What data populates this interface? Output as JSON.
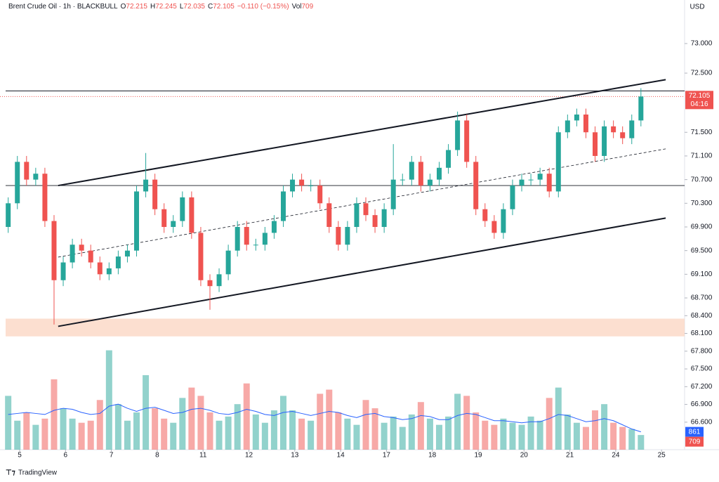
{
  "chart_data": {
    "type": "candlestick",
    "header": {
      "symbol": "Brent Crude Oil · 1h · BLACKBULL",
      "fields": [
        {
          "label": "O",
          "value": 72.215
        },
        {
          "label": "H",
          "value": 72.245
        },
        {
          "label": "L",
          "value": 72.035
        },
        {
          "label": "C",
          "value": 72.105
        }
      ],
      "change": "−0.110 (−0.15%)",
      "volume_label": "Vol",
      "volume": 709
    },
    "currency": "USD",
    "xlim": [
      -0.3,
      14.6
    ],
    "xticks": [
      {
        "value": 0,
        "label": "5"
      },
      {
        "value": 1,
        "label": "6"
      },
      {
        "value": 2,
        "label": "7"
      },
      {
        "value": 3,
        "label": "8"
      },
      {
        "value": 4,
        "label": "11"
      },
      {
        "value": 5,
        "label": "12"
      },
      {
        "value": 6,
        "label": "13"
      },
      {
        "value": 7,
        "label": "14"
      },
      {
        "value": 8,
        "label": "17"
      },
      {
        "value": 9,
        "label": "18"
      },
      {
        "value": 10,
        "label": "19"
      },
      {
        "value": 11,
        "label": "20"
      },
      {
        "value": 12,
        "label": "21"
      },
      {
        "value": 13,
        "label": "24"
      },
      {
        "value": 14,
        "label": "25"
      }
    ],
    "ylim": [
      66.135,
      73.736
    ],
    "yticks": [
      {
        "value": 73,
        "label": "73.000"
      },
      {
        "value": 72.5,
        "label": "72.500"
      },
      {
        "value": 71.5,
        "label": "71.500"
      },
      {
        "value": 71.1,
        "label": "71.100"
      },
      {
        "value": 70.7,
        "label": "70.700"
      },
      {
        "value": 70.3,
        "label": "70.300"
      },
      {
        "value": 69.9,
        "label": "69.900"
      },
      {
        "value": 69.5,
        "label": "69.500"
      },
      {
        "value": 69.1,
        "label": "69.100"
      },
      {
        "value": 68.7,
        "label": "68.700"
      },
      {
        "value": 68.4,
        "label": "68.400"
      },
      {
        "value": 68.1,
        "label": "68.100"
      },
      {
        "value": 67.8,
        "label": "67.800"
      },
      {
        "value": 67.5,
        "label": "67.500"
      },
      {
        "value": 67.2,
        "label": "67.200"
      },
      {
        "value": 66.9,
        "label": "66.900"
      },
      {
        "value": 66.6,
        "label": "66.600"
      }
    ],
    "grid": false,
    "up_color": "#26a69a",
    "down_color": "#ef5350",
    "ma_color": "#2962ff",
    "candles": {
      "x": [
        -0.25,
        -0.05,
        0.15,
        0.35,
        0.55,
        0.75,
        0.95,
        1.15,
        1.35,
        1.55,
        1.75,
        1.95,
        2.15,
        2.35,
        2.55,
        2.75,
        2.95,
        3.15,
        3.35,
        3.55,
        3.75,
        3.95,
        4.15,
        4.35,
        4.55,
        4.75,
        4.95,
        5.15,
        5.35,
        5.55,
        5.75,
        5.95,
        6.15,
        6.35,
        6.55,
        6.75,
        6.95,
        7.15,
        7.35,
        7.55,
        7.75,
        7.95,
        8.15,
        8.35,
        8.55,
        8.75,
        8.95,
        9.15,
        9.35,
        9.55,
        9.75,
        9.95,
        10.15,
        10.35,
        10.55,
        10.75,
        10.95,
        11.15,
        11.35,
        11.55,
        11.75,
        11.95,
        12.15,
        12.35,
        12.55,
        12.75,
        12.95,
        13.15,
        13.35,
        13.55
      ],
      "open": [
        69.9,
        70.3,
        71.0,
        70.7,
        70.8,
        70.0,
        69.0,
        69.3,
        69.6,
        69.5,
        69.3,
        69.1,
        69.2,
        69.4,
        69.5,
        70.5,
        70.7,
        70.2,
        69.9,
        70.0,
        70.4,
        69.8,
        69.0,
        68.9,
        69.1,
        69.5,
        69.9,
        69.6,
        69.6,
        69.8,
        70.0,
        70.5,
        70.7,
        70.6,
        70.6,
        70.3,
        69.9,
        69.6,
        69.9,
        70.3,
        70.1,
        69.9,
        70.2,
        70.7,
        70.7,
        71.0,
        70.6,
        70.7,
        70.9,
        71.2,
        71.7,
        71.0,
        70.2,
        70.0,
        69.8,
        70.2,
        70.6,
        70.7,
        70.7,
        70.8,
        70.5,
        71.5,
        71.7,
        71.8,
        71.5,
        71.1,
        71.6,
        71.5,
        71.4,
        71.7
      ],
      "high": [
        70.4,
        71.1,
        71.1,
        70.9,
        70.9,
        70.1,
        69.4,
        69.7,
        69.7,
        69.6,
        69.4,
        69.3,
        69.5,
        69.6,
        70.6,
        71.15,
        70.8,
        70.3,
        70.1,
        70.5,
        70.5,
        69.9,
        69.1,
        69.2,
        69.6,
        70.0,
        70.0,
        69.7,
        69.9,
        70.1,
        70.6,
        70.8,
        70.8,
        70.7,
        70.7,
        70.4,
        70.0,
        70.0,
        70.4,
        70.4,
        70.2,
        70.3,
        71.3,
        70.8,
        71.1,
        71.1,
        70.8,
        71.0,
        71.3,
        71.85,
        71.8,
        71.1,
        70.3,
        70.1,
        70.3,
        70.7,
        70.8,
        70.8,
        70.9,
        70.9,
        71.6,
        71.8,
        71.9,
        71.9,
        71.6,
        71.7,
        71.7,
        71.6,
        71.8,
        72.245
      ],
      "low": [
        69.8,
        70.2,
        70.6,
        70.6,
        69.9,
        68.25,
        68.9,
        69.2,
        69.4,
        69.2,
        69.0,
        69.0,
        69.1,
        69.3,
        69.4,
        70.4,
        70.1,
        69.8,
        69.8,
        69.9,
        69.7,
        68.9,
        68.5,
        68.8,
        69.0,
        69.4,
        69.5,
        69.5,
        69.5,
        69.7,
        69.9,
        70.4,
        70.5,
        70.5,
        70.2,
        69.8,
        69.5,
        69.5,
        69.8,
        70.0,
        69.8,
        69.8,
        70.1,
        70.6,
        70.6,
        70.5,
        70.5,
        70.6,
        70.8,
        71.1,
        70.9,
        70.1,
        69.9,
        69.7,
        69.7,
        70.1,
        70.5,
        70.6,
        70.6,
        70.4,
        70.4,
        71.4,
        71.6,
        71.4,
        71.0,
        71.0,
        71.4,
        71.3,
        71.3,
        71.6
      ],
      "close": [
        70.3,
        71.0,
        70.7,
        70.8,
        70.0,
        69.0,
        69.3,
        69.6,
        69.5,
        69.3,
        69.1,
        69.2,
        69.4,
        69.5,
        70.5,
        70.7,
        70.2,
        69.9,
        70.0,
        70.4,
        69.8,
        69.0,
        68.9,
        69.1,
        69.5,
        69.9,
        69.6,
        69.6,
        69.8,
        70.0,
        70.5,
        70.7,
        70.6,
        70.6,
        70.3,
        69.9,
        69.6,
        69.9,
        70.3,
        70.1,
        69.9,
        70.2,
        70.7,
        70.7,
        71.0,
        70.6,
        70.7,
        70.9,
        71.2,
        71.7,
        71.0,
        70.2,
        70.0,
        69.8,
        70.2,
        70.6,
        70.7,
        70.7,
        70.8,
        70.5,
        71.5,
        71.7,
        71.8,
        71.5,
        71.1,
        71.6,
        71.5,
        71.4,
        71.7,
        72.105
      ],
      "volume": [
        2600,
        1400,
        1800,
        1200,
        1500,
        3400,
        2000,
        1500,
        1300,
        1400,
        2400,
        4800,
        2200,
        1400,
        1800,
        3600,
        2000,
        1500,
        1300,
        2500,
        3000,
        2600,
        1800,
        1400,
        1600,
        2200,
        3200,
        1700,
        1300,
        1900,
        2600,
        1900,
        1500,
        1400,
        2700,
        2900,
        1800,
        1500,
        1200,
        2400,
        2000,
        1300,
        1600,
        1100,
        1700,
        2300,
        1500,
        1200,
        1600,
        2700,
        2600,
        1800,
        1400,
        1200,
        1500,
        1300,
        1200,
        1600,
        1400,
        2500,
        3000,
        1700,
        1300,
        1100,
        1900,
        2200,
        1300,
        1100,
        1000,
        709
      ],
      "volume_ma": [
        1700,
        1750,
        1800,
        1750,
        1700,
        1900,
        2000,
        1950,
        1800,
        1700,
        1750,
        2100,
        2200,
        2000,
        1850,
        2000,
        2050,
        1900,
        1750,
        1800,
        1950,
        2000,
        1900,
        1750,
        1700,
        1800,
        1950,
        1850,
        1700,
        1650,
        1800,
        1850,
        1750,
        1650,
        1750,
        1850,
        1800,
        1650,
        1550,
        1700,
        1750,
        1600,
        1550,
        1450,
        1500,
        1650,
        1600,
        1450,
        1450,
        1650,
        1750,
        1700,
        1550,
        1400,
        1400,
        1350,
        1300,
        1350,
        1350,
        1500,
        1700,
        1650,
        1500,
        1350,
        1400,
        1500,
        1400,
        1200,
        1000,
        861
      ]
    },
    "volume_ylim": [
      0,
      5600
    ],
    "last_price": 72.105,
    "countdown": "04:16",
    "volume_ma_last": 861,
    "volume_last": 709,
    "trendlines": [
      {
        "x1": 0.84,
        "y1": 70.6,
        "x2": 14.09,
        "y2": 72.39,
        "style": "solid"
      },
      {
        "x1": 0.84,
        "y1": 68.22,
        "x2": 14.09,
        "y2": 70.05,
        "style": "solid"
      },
      {
        "x1": 0.84,
        "y1": 69.39,
        "x2": 14.09,
        "y2": 71.22,
        "style": "dashed"
      }
    ],
    "hlines": [
      72.2,
      70.6
    ],
    "zone": [
      68.05,
      68.35
    ],
    "brand": "TradingView"
  }
}
